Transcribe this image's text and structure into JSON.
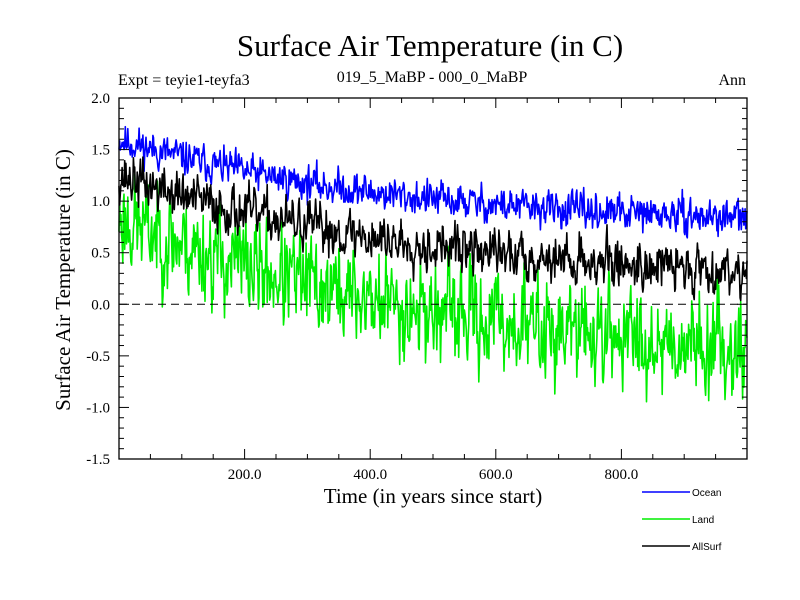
{
  "chart_data": {
    "type": "line",
    "title": "Surface Air Temperature (in C)",
    "subtitle_left": "Expt = teyie1-teyfa3",
    "subtitle_center": "019_5_MaBP - 000_0_MaBP",
    "subtitle_right": "Ann",
    "xlabel": "Time (in years since start)",
    "ylabel": "Surface Air Temperature (in C)",
    "xlim": [
      0,
      1000
    ],
    "ylim": [
      -1.5,
      2.0
    ],
    "xticks": [
      200,
      400,
      600,
      800
    ],
    "xtick_labels": [
      "200.0",
      "400.0",
      "600.0",
      "800.0"
    ],
    "yticks": [
      -1.5,
      -1.0,
      -0.5,
      0.0,
      0.5,
      1.0,
      1.5,
      2.0
    ],
    "ytick_labels": [
      "-1.5",
      "-1.0",
      "-0.5",
      "0.0",
      "0.5",
      "1.0",
      "1.5",
      "2.0"
    ],
    "reference_line": 0.0,
    "series": [
      {
        "name": "Ocean",
        "color": "#0000ff",
        "start": 1.6,
        "end": 0.75,
        "decay": 0.0023,
        "noise": 0.16,
        "seed": 11
      },
      {
        "name": "Land",
        "color": "#00ee00",
        "start": 0.85,
        "end": -0.6,
        "decay": 0.002,
        "noise": 0.45,
        "seed": 23
      },
      {
        "name": "AllSurf",
        "color": "#000000",
        "start": 1.25,
        "end": 0.2,
        "decay": 0.0021,
        "noise": 0.22,
        "seed": 37
      }
    ],
    "legend": [
      "Ocean",
      "Land",
      "AllSurf"
    ]
  }
}
